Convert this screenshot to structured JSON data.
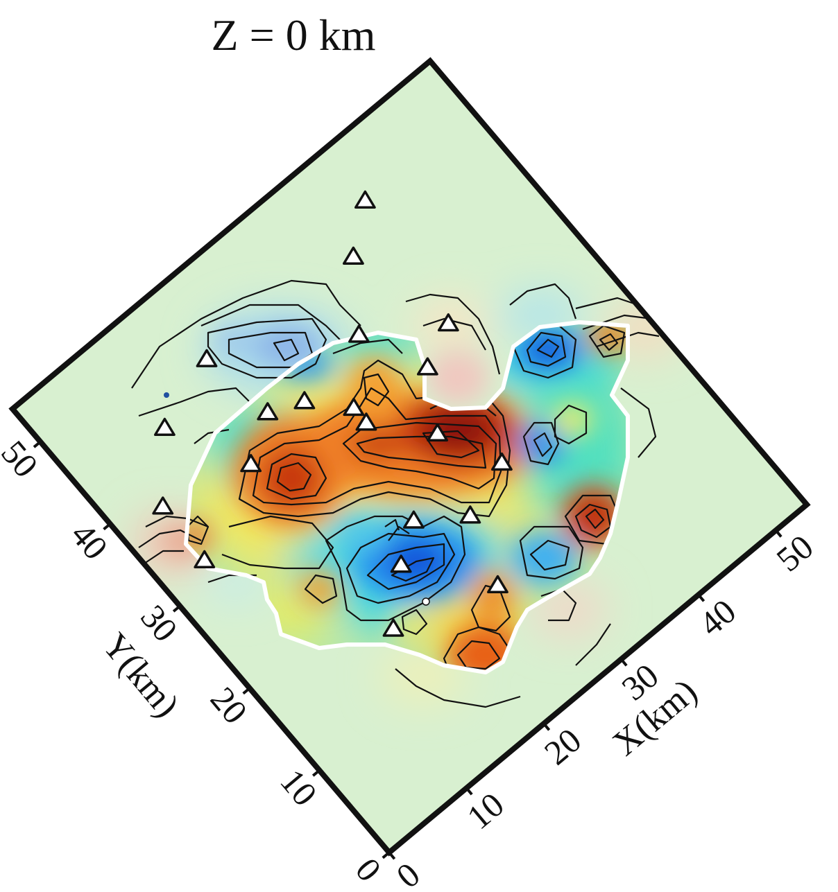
{
  "title": "Z = 0 km",
  "x_axis": {
    "label": "X(km)",
    "ticks": [
      "0",
      "10",
      "20",
      "30",
      "40",
      "50"
    ]
  },
  "y_axis": {
    "label": "Y(km)",
    "ticks": [
      "0",
      "10",
      "20",
      "30",
      "40",
      "50"
    ]
  },
  "colors": {
    "background": "#d8f0d0",
    "frame": "#111111",
    "contour": "#111111",
    "resolution_outline": "#ffffff",
    "station_fill": "#ffffff",
    "station_stroke": "#111111"
  },
  "stations": [
    {
      "x": 17.9,
      "y": 46.0
    },
    {
      "x": 19.1,
      "y": 38.6
    },
    {
      "x": 10.3,
      "y": 43.6
    },
    {
      "x": 5.1,
      "y": 38.1
    },
    {
      "x": 4.8,
      "y": 31.8
    },
    {
      "x": 14.5,
      "y": 35.9
    },
    {
      "x": 22.6,
      "y": 37.2
    },
    {
      "x": 25.9,
      "y": 33.8
    },
    {
      "x": 25.9,
      "y": 32.0
    },
    {
      "x": 31.0,
      "y": 38.7
    },
    {
      "x": 35.6,
      "y": 44.6
    },
    {
      "x": 40.1,
      "y": 47.9
    },
    {
      "x": 38.5,
      "y": 34.2
    },
    {
      "x": 34.1,
      "y": 32.3
    },
    {
      "x": 30.6,
      "y": 27.0
    },
    {
      "x": 33.6,
      "y": 21.1
    },
    {
      "x": 27.8,
      "y": 19.2
    },
    {
      "x": 23.2,
      "y": 22.2
    },
    {
      "x": 19.4,
      "y": 19.8
    },
    {
      "x": 14.7,
      "y": 15.7
    },
    {
      "x": 25.4,
      "y": 12.6
    }
  ]
}
